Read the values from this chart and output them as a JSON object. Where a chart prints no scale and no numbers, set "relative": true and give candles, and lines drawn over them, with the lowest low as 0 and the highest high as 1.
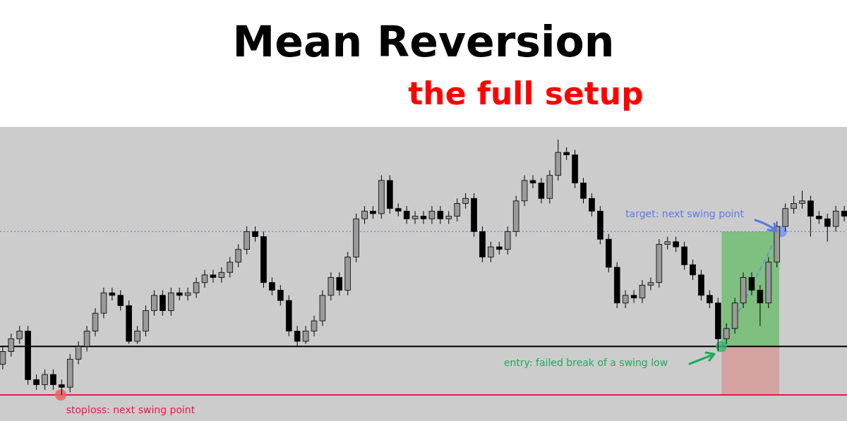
{
  "chart_data": {
    "type": "candlestick",
    "title": "Mean Reversion",
    "subtitle": "the full setup",
    "relative": true,
    "color": "#000000",
    "categories": [
      null,
      null,
      null,
      null,
      null,
      null,
      null,
      null,
      null,
      null,
      null,
      null,
      null,
      null,
      null,
      null,
      null,
      null,
      null,
      null,
      null,
      null,
      null,
      null,
      null,
      null,
      null,
      null,
      null,
      null,
      null,
      null,
      null,
      null,
      null,
      null,
      null,
      null,
      null,
      null,
      null,
      null,
      null,
      null,
      null,
      null,
      null,
      null,
      null,
      null,
      null,
      null,
      null,
      null,
      null,
      null,
      null,
      null,
      null,
      null,
      null,
      null,
      null,
      null,
      null,
      null,
      null,
      null,
      null,
      null,
      null,
      null,
      null,
      null,
      null,
      null,
      null,
      null,
      null,
      null,
      null,
      null,
      null,
      null,
      null,
      null,
      null,
      null,
      null,
      null,
      null,
      null,
      null,
      null,
      null,
      null,
      null,
      null,
      null,
      null,
      null
    ],
    "ohlc": [
      [
        0.12,
        0.19,
        0.1,
        0.17
      ],
      [
        0.17,
        0.24,
        0.15,
        0.22
      ],
      [
        0.22,
        0.27,
        0.2,
        0.25
      ],
      [
        0.25,
        0.27,
        0.04,
        0.06
      ],
      [
        0.06,
        0.08,
        0.02,
        0.04
      ],
      [
        0.04,
        0.1,
        0.02,
        0.08
      ],
      [
        0.08,
        0.1,
        0.02,
        0.04
      ],
      [
        0.04,
        0.06,
        0,
        0.03
      ],
      [
        0.03,
        0.16,
        0.01,
        0.14
      ],
      [
        0.14,
        0.21,
        0.12,
        0.19
      ],
      [
        0.19,
        0.27,
        0.17,
        0.25
      ],
      [
        0.25,
        0.34,
        0.23,
        0.32
      ],
      [
        0.32,
        0.42,
        0.3,
        0.4
      ],
      [
        0.4,
        0.42,
        0.37,
        0.39
      ],
      [
        0.39,
        0.41,
        0.33,
        0.35
      ],
      [
        0.35,
        0.37,
        0.2,
        0.21
      ],
      [
        0.21,
        0.27,
        0.2,
        0.25
      ],
      [
        0.25,
        0.35,
        0.23,
        0.33
      ],
      [
        0.33,
        0.41,
        0.31,
        0.39
      ],
      [
        0.39,
        0.41,
        0.31,
        0.33
      ],
      [
        0.33,
        0.42,
        0.31,
        0.4
      ],
      [
        0.4,
        0.42,
        0.37,
        0.39
      ],
      [
        0.39,
        0.42,
        0.37,
        0.4
      ],
      [
        0.4,
        0.46,
        0.38,
        0.44
      ],
      [
        0.44,
        0.49,
        0.42,
        0.47
      ],
      [
        0.47,
        0.49,
        0.44,
        0.46
      ],
      [
        0.46,
        0.5,
        0.44,
        0.48
      ],
      [
        0.48,
        0.54,
        0.46,
        0.52
      ],
      [
        0.52,
        0.59,
        0.5,
        0.57
      ],
      [
        0.57,
        0.66,
        0.55,
        0.64
      ],
      [
        0.64,
        0.66,
        0.6,
        0.62
      ],
      [
        0.62,
        0.64,
        0.42,
        0.44
      ],
      [
        0.44,
        0.46,
        0.39,
        0.41
      ],
      [
        0.41,
        0.43,
        0.35,
        0.37
      ],
      [
        0.37,
        0.39,
        0.23,
        0.25
      ],
      [
        0.25,
        0.27,
        0.19,
        0.21
      ],
      [
        0.21,
        0.27,
        0.2,
        0.25
      ],
      [
        0.25,
        0.31,
        0.23,
        0.29
      ],
      [
        0.29,
        0.41,
        0.27,
        0.39
      ],
      [
        0.39,
        0.48,
        0.37,
        0.46
      ],
      [
        0.46,
        0.48,
        0.39,
        0.41
      ],
      [
        0.41,
        0.56,
        0.39,
        0.54
      ],
      [
        0.54,
        0.71,
        0.52,
        0.69
      ],
      [
        0.69,
        0.74,
        0.67,
        0.72
      ],
      [
        0.72,
        0.74,
        0.69,
        0.71
      ],
      [
        0.71,
        0.86,
        0.69,
        0.84
      ],
      [
        0.84,
        0.86,
        0.71,
        0.73
      ],
      [
        0.73,
        0.75,
        0.7,
        0.72
      ],
      [
        0.72,
        0.74,
        0.67,
        0.69
      ],
      [
        0.69,
        0.72,
        0.67,
        0.7
      ],
      [
        0.7,
        0.72,
        0.67,
        0.69
      ],
      [
        0.69,
        0.74,
        0.67,
        0.72
      ],
      [
        0.72,
        0.74,
        0.67,
        0.69
      ],
      [
        0.69,
        0.72,
        0.67,
        0.7
      ],
      [
        0.7,
        0.77,
        0.68,
        0.75
      ],
      [
        0.75,
        0.79,
        0.73,
        0.77
      ],
      [
        0.77,
        0.79,
        0.62,
        0.64
      ],
      [
        0.64,
        0.66,
        0.52,
        0.54
      ],
      [
        0.54,
        0.6,
        0.52,
        0.58
      ],
      [
        0.58,
        0.6,
        0.55,
        0.57
      ],
      [
        0.57,
        0.66,
        0.55,
        0.64
      ],
      [
        0.64,
        0.78,
        0.62,
        0.76
      ],
      [
        0.76,
        0.86,
        0.74,
        0.84
      ],
      [
        0.84,
        0.86,
        0.81,
        0.83
      ],
      [
        0.83,
        0.85,
        0.75,
        0.77
      ],
      [
        0.77,
        0.88,
        0.75,
        0.86
      ],
      [
        0.86,
        1,
        0.84,
        0.95
      ],
      [
        0.95,
        0.97,
        0.92,
        0.94
      ],
      [
        0.94,
        0.96,
        0.81,
        0.83
      ],
      [
        0.83,
        0.85,
        0.75,
        0.77
      ],
      [
        0.77,
        0.79,
        0.7,
        0.72
      ],
      [
        0.72,
        0.74,
        0.59,
        0.61
      ],
      [
        0.61,
        0.63,
        0.48,
        0.5
      ],
      [
        0.5,
        0.52,
        0.34,
        0.36
      ],
      [
        0.36,
        0.41,
        0.34,
        0.39
      ],
      [
        0.39,
        0.41,
        0.36,
        0.38
      ],
      [
        0.38,
        0.45,
        0.36,
        0.43
      ],
      [
        0.43,
        0.46,
        0.41,
        0.44
      ],
      [
        0.44,
        0.61,
        0.42,
        0.59
      ],
      [
        0.59,
        0.62,
        0.57,
        0.6
      ],
      [
        0.6,
        0.62,
        0.56,
        0.58
      ],
      [
        0.58,
        0.6,
        0.49,
        0.51
      ],
      [
        0.51,
        0.53,
        0.45,
        0.47
      ],
      [
        0.47,
        0.49,
        0.37,
        0.39
      ],
      [
        0.39,
        0.41,
        0.34,
        0.36
      ],
      [
        0.36,
        0.38,
        0.17,
        0.22
      ],
      [
        0.22,
        0.28,
        0.2,
        0.26
      ],
      [
        0.26,
        0.38,
        0.24,
        0.36
      ],
      [
        0.36,
        0.48,
        0.34,
        0.46
      ],
      [
        0.46,
        0.48,
        0.39,
        0.41
      ],
      [
        0.41,
        0.43,
        0.27,
        0.36
      ],
      [
        0.36,
        0.54,
        0.34,
        0.52
      ],
      [
        0.52,
        0.68,
        0.5,
        0.66
      ],
      [
        0.66,
        0.75,
        0.64,
        0.73
      ],
      [
        0.73,
        0.78,
        0.71,
        0.75
      ],
      [
        0.75,
        0.8,
        0.73,
        0.76
      ],
      [
        0.76,
        0.78,
        0.62,
        0.7
      ],
      [
        0.7,
        0.72,
        0.67,
        0.69
      ],
      [
        0.69,
        0.71,
        0.6,
        0.66
      ],
      [
        0.66,
        0.74,
        0.64,
        0.72
      ],
      [
        0.72,
        0.74,
        0.68,
        0.7
      ]
    ],
    "ref_lines": [
      {
        "axis": "y",
        "value": 0.19,
        "color": "#000000",
        "line_style": "solid"
      },
      {
        "axis": "y",
        "value": 0,
        "color": "#e8174a",
        "line_style": "solid"
      },
      {
        "axis": "y",
        "value": 0.64,
        "color": "#5a78e8",
        "line_style": "dotted"
      }
    ],
    "bands": [
      {
        "axis": "y",
        "from": 0.19,
        "to": 0.64,
        "color": "#7fbf7f"
      },
      {
        "axis": "y",
        "from": 0,
        "to": 0.19,
        "color": "#d6a3a3"
      }
    ],
    "annotations": [
      {
        "text": "target: next swing point",
        "y": 0.64
      },
      {
        "text": "entry: failed break of a swing low",
        "y": 0.19
      },
      {
        "text": "stoploss: next swing point",
        "y": 0
      }
    ]
  }
}
